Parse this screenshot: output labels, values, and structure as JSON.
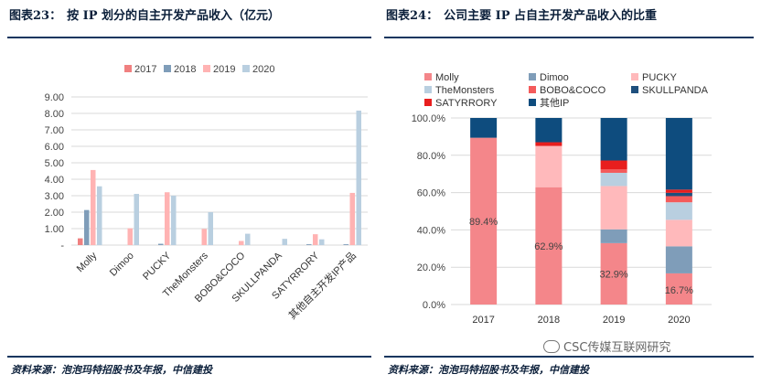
{
  "left_title": {
    "label": "图表23：",
    "text": "按 IP 划分的自主开发产品收入（亿元）"
  },
  "right_title": {
    "label": "图表24：",
    "text": "公司主要 IP 占自主开发产品收入的比重"
  },
  "left_source": "资料来源：泡泡玛特招股书及年报，中信建投",
  "right_source": "资料来源：泡泡玛特招股书及年报，中信建投",
  "watermark": "CSC传媒互联网研究",
  "chart_data": [
    {
      "type": "bar",
      "title": "按 IP 划分的自主开发产品收入（亿元）",
      "categories": [
        "Molly",
        "Dimoo",
        "PUCKY",
        "TheMonsters",
        "BOBO&COCO",
        "SKULLPANDA",
        "SATYRRORY",
        "其他自主开发IP产品"
      ],
      "series": [
        {
          "name": "2017",
          "color": "#f08080",
          "values": [
            0.41,
            0,
            0,
            0,
            0,
            0,
            0,
            0
          ]
        },
        {
          "name": "2018",
          "color": "#7f9db9",
          "values": [
            2.13,
            0,
            0.08,
            0,
            0,
            0,
            0.05,
            0.05
          ]
        },
        {
          "name": "2019",
          "color": "#ffb3b3",
          "values": [
            4.56,
            1.02,
            3.21,
            0.98,
            0.25,
            0,
            0.66,
            3.17
          ]
        },
        {
          "name": "2020",
          "color": "#b9cfe0",
          "values": [
            3.57,
            3.11,
            3.0,
            2.0,
            0.69,
            0.38,
            0.35,
            8.17
          ]
        }
      ],
      "yticks": [
        "-",
        "1.00",
        "2.00",
        "3.00",
        "4.00",
        "5.00",
        "6.00",
        "7.00",
        "8.00",
        "9.00"
      ],
      "ylim": [
        0,
        9
      ],
      "grid": true,
      "legend": "top"
    },
    {
      "type": "bar",
      "stacked": true,
      "title": "公司主要 IP 占自主开发产品收入的比重",
      "categories": [
        "2017",
        "2018",
        "2019",
        "2020"
      ],
      "series": [
        {
          "name": "Molly",
          "color": "#f4868a",
          "values": [
            89.4,
            62.9,
            32.9,
            16.7
          ]
        },
        {
          "name": "Dimoo",
          "color": "#7f9db9",
          "values": [
            0,
            0,
            7.4,
            14.5
          ]
        },
        {
          "name": "PUCKY",
          "color": "#ffb9bb",
          "values": [
            0,
            22.1,
            23.2,
            14.2
          ]
        },
        {
          "name": "TheMonsters",
          "color": "#b9cfe0",
          "values": [
            0,
            0,
            7.1,
            9.4
          ]
        },
        {
          "name": "BOBO&COCO",
          "color": "#f45b5b",
          "values": [
            0,
            0,
            1.8,
            3.3
          ]
        },
        {
          "name": "SKULLPANDA",
          "color": "#1e4f7d",
          "values": [
            0,
            0,
            0,
            1.8
          ]
        },
        {
          "name": "SATYRRORY",
          "color": "#e81e1e",
          "values": [
            0,
            2.0,
            4.8,
            1.7
          ]
        },
        {
          "name": "其他IP",
          "color": "#0e4c7e",
          "values": [
            10.6,
            13.0,
            22.8,
            38.4
          ]
        }
      ],
      "data_labels": [
        "89.4%",
        "62.9%",
        "32.9%",
        "16.7%"
      ],
      "yticks": [
        "0.0%",
        "20.0%",
        "40.0%",
        "60.0%",
        "80.0%",
        "100.0%"
      ],
      "ylim": [
        0,
        100
      ],
      "grid": true,
      "legend": "top"
    }
  ]
}
